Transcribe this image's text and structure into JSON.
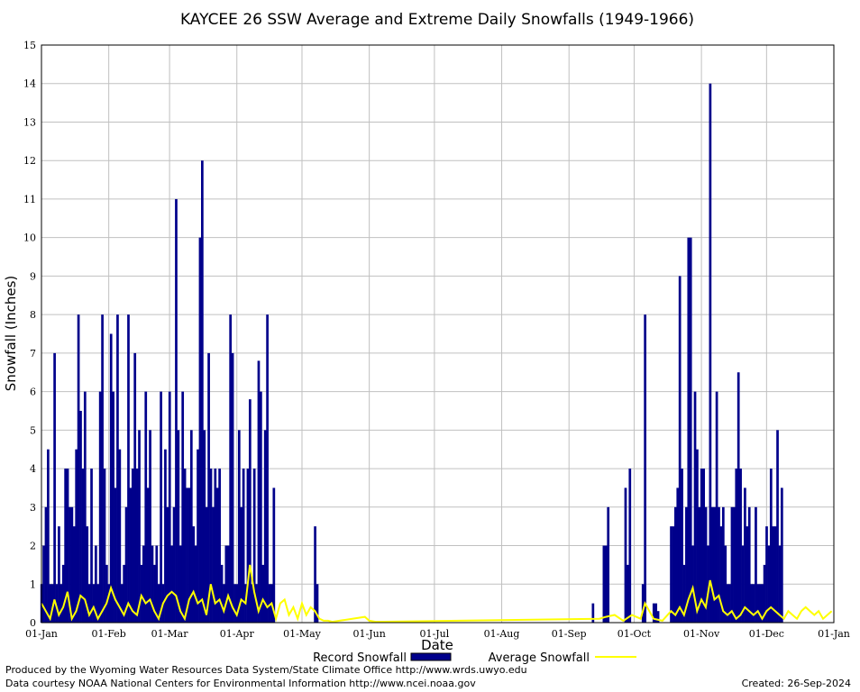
{
  "chart_data": {
    "type": "bar",
    "title": "KAYCEE 26 SSW Average and Extreme Daily Snowfalls (1949-1966)",
    "xlabel": "Date",
    "ylabel": "Snowfall (Inches)",
    "ylim": [
      0,
      15
    ],
    "yticks": [
      "0",
      "1",
      "2",
      "3",
      "4",
      "5",
      "6",
      "7",
      "8",
      "9",
      "10",
      "11",
      "12",
      "13",
      "14",
      "15"
    ],
    "xticks": [
      {
        "day": 1,
        "label": "01-Jan"
      },
      {
        "day": 32,
        "label": "01-Feb"
      },
      {
        "day": 60,
        "label": "01-Mar"
      },
      {
        "day": 91,
        "label": "01-Apr"
      },
      {
        "day": 121,
        "label": "01-May"
      },
      {
        "day": 152,
        "label": "01-Jun"
      },
      {
        "day": 182,
        "label": "01-Jul"
      },
      {
        "day": 213,
        "label": "01-Aug"
      },
      {
        "day": 244,
        "label": "01-Sep"
      },
      {
        "day": 274,
        "label": "01-Oct"
      },
      {
        "day": 305,
        "label": "01-Nov"
      },
      {
        "day": 335,
        "label": "01-Dec"
      },
      {
        "day": 366,
        "label": "01-Jan"
      }
    ],
    "grid": true,
    "legend": [
      {
        "label": "Record Snowfall",
        "color": "#00008b"
      },
      {
        "label": "Average Snowfall",
        "color": "#ffff00"
      }
    ],
    "legend_position": "bottom",
    "series": [
      {
        "name": "Record Snowfall",
        "kind": "bar",
        "color": "#00008b",
        "points": [
          [
            1,
            1
          ],
          [
            2,
            2
          ],
          [
            3,
            3
          ],
          [
            4,
            4.5
          ],
          [
            5,
            1
          ],
          [
            6,
            1
          ],
          [
            7,
            7
          ],
          [
            8,
            1
          ],
          [
            9,
            2.5
          ],
          [
            10,
            1
          ],
          [
            11,
            1.5
          ],
          [
            12,
            4
          ],
          [
            13,
            4
          ],
          [
            14,
            3
          ],
          [
            15,
            3
          ],
          [
            16,
            2.5
          ],
          [
            17,
            4.5
          ],
          [
            18,
            8
          ],
          [
            19,
            5.5
          ],
          [
            20,
            4
          ],
          [
            21,
            6
          ],
          [
            22,
            2.5
          ],
          [
            23,
            1
          ],
          [
            24,
            4
          ],
          [
            25,
            1
          ],
          [
            26,
            2
          ],
          [
            27,
            1
          ],
          [
            28,
            6
          ],
          [
            29,
            8
          ],
          [
            30,
            4
          ],
          [
            31,
            1.5
          ],
          [
            32,
            1
          ],
          [
            33,
            7.5
          ],
          [
            34,
            6
          ],
          [
            35,
            3.5
          ],
          [
            36,
            8
          ],
          [
            37,
            4.5
          ],
          [
            38,
            1
          ],
          [
            39,
            1.5
          ],
          [
            40,
            3
          ],
          [
            41,
            8
          ],
          [
            42,
            3.5
          ],
          [
            43,
            4
          ],
          [
            44,
            7
          ],
          [
            45,
            4
          ],
          [
            46,
            5
          ],
          [
            47,
            1.5
          ],
          [
            48,
            2
          ],
          [
            49,
            6
          ],
          [
            50,
            3.5
          ],
          [
            51,
            5
          ],
          [
            52,
            2
          ],
          [
            53,
            1.5
          ],
          [
            54,
            2
          ],
          [
            55,
            1
          ],
          [
            56,
            6
          ],
          [
            57,
            1
          ],
          [
            58,
            4.5
          ],
          [
            59,
            3
          ],
          [
            60,
            6
          ],
          [
            61,
            2
          ],
          [
            62,
            3
          ],
          [
            63,
            11
          ],
          [
            64,
            5
          ],
          [
            65,
            2
          ],
          [
            66,
            6
          ],
          [
            67,
            4
          ],
          [
            68,
            3.5
          ],
          [
            69,
            3.5
          ],
          [
            70,
            5
          ],
          [
            71,
            2.5
          ],
          [
            72,
            2
          ],
          [
            73,
            4.5
          ],
          [
            74,
            10
          ],
          [
            75,
            12
          ],
          [
            76,
            5
          ],
          [
            77,
            3
          ],
          [
            78,
            7
          ],
          [
            79,
            4
          ],
          [
            80,
            3
          ],
          [
            81,
            4
          ],
          [
            82,
            3.5
          ],
          [
            83,
            4
          ],
          [
            84,
            1.5
          ],
          [
            85,
            1
          ],
          [
            86,
            2
          ],
          [
            87,
            2
          ],
          [
            88,
            8
          ],
          [
            89,
            7
          ],
          [
            90,
            1
          ],
          [
            91,
            1
          ],
          [
            92,
            5
          ],
          [
            93,
            3
          ],
          [
            94,
            4
          ],
          [
            95,
            1
          ],
          [
            96,
            4
          ],
          [
            97,
            5.8
          ],
          [
            98,
            1
          ],
          [
            99,
            4
          ],
          [
            100,
            1
          ],
          [
            101,
            6.8
          ],
          [
            102,
            6
          ],
          [
            103,
            1.5
          ],
          [
            104,
            5
          ],
          [
            105,
            8
          ],
          [
            106,
            1
          ],
          [
            107,
            1
          ],
          [
            108,
            3.5
          ],
          [
            127,
            2.5
          ],
          [
            128,
            1
          ],
          [
            255,
            0.5
          ],
          [
            260,
            2
          ],
          [
            261,
            2
          ],
          [
            262,
            3
          ],
          [
            270,
            3.5
          ],
          [
            271,
            1.5
          ],
          [
            272,
            4
          ],
          [
            278,
            1
          ],
          [
            279,
            8
          ],
          [
            283,
            0.5
          ],
          [
            284,
            0.5
          ],
          [
            285,
            0.3
          ],
          [
            291,
            2.5
          ],
          [
            292,
            2.5
          ],
          [
            293,
            3
          ],
          [
            294,
            3.5
          ],
          [
            295,
            9
          ],
          [
            296,
            4
          ],
          [
            297,
            1.5
          ],
          [
            298,
            3
          ],
          [
            299,
            10
          ],
          [
            300,
            10
          ],
          [
            301,
            2
          ],
          [
            302,
            6
          ],
          [
            303,
            4.5
          ],
          [
            304,
            3
          ],
          [
            305,
            4
          ],
          [
            306,
            4
          ],
          [
            307,
            3
          ],
          [
            308,
            2
          ],
          [
            309,
            14
          ],
          [
            310,
            3
          ],
          [
            311,
            3
          ],
          [
            312,
            6
          ],
          [
            313,
            3
          ],
          [
            314,
            2.5
          ],
          [
            315,
            3
          ],
          [
            316,
            2
          ],
          [
            317,
            1
          ],
          [
            318,
            1
          ],
          [
            319,
            3
          ],
          [
            320,
            3
          ],
          [
            321,
            4
          ],
          [
            322,
            6.5
          ],
          [
            323,
            4
          ],
          [
            324,
            2
          ],
          [
            325,
            3.5
          ],
          [
            326,
            2.5
          ],
          [
            327,
            3
          ],
          [
            328,
            1
          ],
          [
            329,
            1
          ],
          [
            330,
            3
          ],
          [
            331,
            1
          ],
          [
            332,
            1
          ],
          [
            333,
            1
          ],
          [
            334,
            1.5
          ],
          [
            335,
            2.5
          ],
          [
            336,
            2
          ],
          [
            337,
            4
          ],
          [
            338,
            2.5
          ],
          [
            339,
            2.5
          ],
          [
            340,
            5
          ],
          [
            341,
            2
          ],
          [
            342,
            3.5
          ]
        ]
      },
      {
        "name": "Average Snowfall",
        "kind": "line",
        "color": "#ffff00",
        "points": [
          [
            1,
            0.5
          ],
          [
            3,
            0.3
          ],
          [
            5,
            0.1
          ],
          [
            7,
            0.6
          ],
          [
            9,
            0.2
          ],
          [
            11,
            0.4
          ],
          [
            13,
            0.8
          ],
          [
            15,
            0.1
          ],
          [
            17,
            0.3
          ],
          [
            19,
            0.7
          ],
          [
            21,
            0.6
          ],
          [
            23,
            0.2
          ],
          [
            25,
            0.4
          ],
          [
            27,
            0.1
          ],
          [
            29,
            0.3
          ],
          [
            31,
            0.5
          ],
          [
            33,
            0.9
          ],
          [
            35,
            0.6
          ],
          [
            37,
            0.4
          ],
          [
            39,
            0.2
          ],
          [
            41,
            0.5
          ],
          [
            43,
            0.3
          ],
          [
            45,
            0.2
          ],
          [
            47,
            0.7
          ],
          [
            49,
            0.5
          ],
          [
            51,
            0.6
          ],
          [
            53,
            0.3
          ],
          [
            55,
            0.1
          ],
          [
            57,
            0.5
          ],
          [
            59,
            0.7
          ],
          [
            61,
            0.8
          ],
          [
            63,
            0.7
          ],
          [
            65,
            0.3
          ],
          [
            67,
            0.1
          ],
          [
            69,
            0.6
          ],
          [
            71,
            0.8
          ],
          [
            73,
            0.5
          ],
          [
            75,
            0.6
          ],
          [
            77,
            0.2
          ],
          [
            79,
            1
          ],
          [
            81,
            0.5
          ],
          [
            83,
            0.6
          ],
          [
            85,
            0.3
          ],
          [
            87,
            0.7
          ],
          [
            89,
            0.4
          ],
          [
            91,
            0.2
          ],
          [
            93,
            0.6
          ],
          [
            95,
            0.5
          ],
          [
            97,
            1.5
          ],
          [
            99,
            0.8
          ],
          [
            101,
            0.3
          ],
          [
            103,
            0.6
          ],
          [
            105,
            0.4
          ],
          [
            107,
            0.5
          ],
          [
            109,
            0.1
          ],
          [
            111,
            0.5
          ],
          [
            113,
            0.6
          ],
          [
            115,
            0.2
          ],
          [
            117,
            0.4
          ],
          [
            119,
            0.1
          ],
          [
            121,
            0.5
          ],
          [
            123,
            0.2
          ],
          [
            125,
            0.4
          ],
          [
            127,
            0.3
          ],
          [
            129,
            0.1
          ],
          [
            131,
            0.05
          ],
          [
            133,
            0.05
          ],
          [
            135,
            0.02
          ],
          [
            150,
            0.15
          ],
          [
            152,
            0.05
          ],
          [
            155,
            0.02
          ],
          [
            258,
            0.1
          ],
          [
            261,
            0.15
          ],
          [
            265,
            0.2
          ],
          [
            269,
            0.05
          ],
          [
            273,
            0.2
          ],
          [
            277,
            0.1
          ],
          [
            279,
            0.5
          ],
          [
            283,
            0.1
          ],
          [
            287,
            0.05
          ],
          [
            291,
            0.3
          ],
          [
            293,
            0.2
          ],
          [
            295,
            0.4
          ],
          [
            297,
            0.2
          ],
          [
            299,
            0.6
          ],
          [
            301,
            0.9
          ],
          [
            303,
            0.3
          ],
          [
            305,
            0.6
          ],
          [
            307,
            0.4
          ],
          [
            309,
            1.1
          ],
          [
            311,
            0.6
          ],
          [
            313,
            0.7
          ],
          [
            315,
            0.3
          ],
          [
            317,
            0.2
          ],
          [
            319,
            0.3
          ],
          [
            321,
            0.1
          ],
          [
            323,
            0.2
          ],
          [
            325,
            0.4
          ],
          [
            327,
            0.3
          ],
          [
            329,
            0.2
          ],
          [
            331,
            0.3
          ],
          [
            333,
            0.1
          ],
          [
            335,
            0.3
          ],
          [
            337,
            0.4
          ],
          [
            339,
            0.3
          ],
          [
            341,
            0.2
          ],
          [
            343,
            0.1
          ],
          [
            345,
            0.3
          ],
          [
            347,
            0.2
          ],
          [
            349,
            0.1
          ],
          [
            351,
            0.3
          ],
          [
            353,
            0.4
          ],
          [
            355,
            0.3
          ],
          [
            357,
            0.2
          ],
          [
            359,
            0.3
          ],
          [
            361,
            0.1
          ],
          [
            363,
            0.2
          ],
          [
            365,
            0.3
          ]
        ]
      }
    ]
  },
  "footer": {
    "credit_line1": "Produced by the Wyoming Water Resources Data System/State Climate Office http://www.wrds.uwyo.edu",
    "credit_line2": "Data courtesy NOAA National Centers for Environmental Information http://www.ncei.noaa.gov",
    "created": "Created:  26-Sep-2024"
  }
}
